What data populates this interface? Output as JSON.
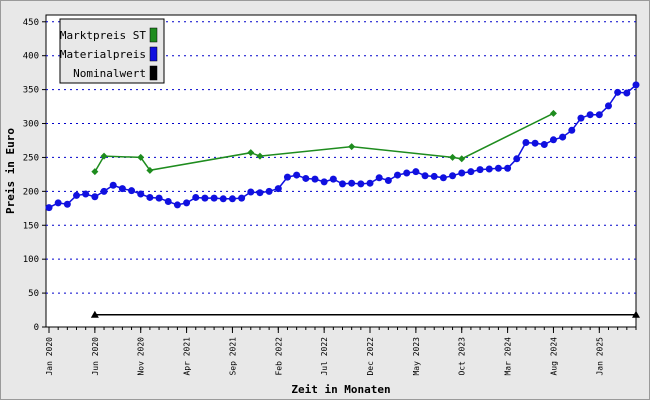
{
  "chart_data": {
    "type": "line",
    "xlabel": "Zeit in Monaten",
    "ylabel": "Preis in Euro",
    "ylim": [
      0,
      460
    ],
    "xlim": [
      "2020-01",
      "2025-05"
    ],
    "y_ticks": [
      0,
      50,
      100,
      150,
      200,
      250,
      300,
      350,
      400,
      450
    ],
    "x_tick_labels": [
      "Jan 2020",
      "Jun 2020",
      "Nov 2020",
      "Apr 2021",
      "Sep 2021",
      "Feb 2022",
      "Jul 2022",
      "Dec 2022",
      "May 2023",
      "Oct 2023",
      "Mar 2024",
      "Aug 2024",
      "Jan 2025"
    ],
    "x_tick_values": [
      "2020-01",
      "2020-06",
      "2020-11",
      "2021-04",
      "2021-09",
      "2022-02",
      "2022-07",
      "2022-12",
      "2023-05",
      "2023-10",
      "2024-03",
      "2024-08",
      "2025-01"
    ],
    "grid": true,
    "legend_position": "top-left",
    "series": [
      {
        "name": "Marktpreis ST",
        "color": "#1e8c1e",
        "marker": "diamond",
        "x": [
          "2020-06",
          "2020-07",
          "2020-11",
          "2020-12",
          "2021-11",
          "2021-12",
          "2022-10",
          "2023-09",
          "2023-10",
          "2024-08"
        ],
        "y": [
          229,
          252,
          250,
          231,
          257,
          252,
          266,
          250,
          248,
          315
        ]
      },
      {
        "name": "Materialpreis",
        "color": "#1010e0",
        "marker": "circle",
        "x": [
          "2020-01",
          "2020-02",
          "2020-03",
          "2020-04",
          "2020-05",
          "2020-06",
          "2020-07",
          "2020-08",
          "2020-09",
          "2020-10",
          "2020-11",
          "2020-12",
          "2021-01",
          "2021-02",
          "2021-03",
          "2021-04",
          "2021-05",
          "2021-06",
          "2021-07",
          "2021-08",
          "2021-09",
          "2021-10",
          "2021-11",
          "2021-12",
          "2022-01",
          "2022-02",
          "2022-03",
          "2022-04",
          "2022-05",
          "2022-06",
          "2022-07",
          "2022-08",
          "2022-09",
          "2022-10",
          "2022-11",
          "2022-12",
          "2023-01",
          "2023-02",
          "2023-03",
          "2023-04",
          "2023-05",
          "2023-06",
          "2023-07",
          "2023-08",
          "2023-09",
          "2023-10",
          "2023-11",
          "2023-12",
          "2024-01",
          "2024-02",
          "2024-03",
          "2024-04",
          "2024-05",
          "2024-06",
          "2024-07",
          "2024-08",
          "2024-09",
          "2024-10",
          "2024-11",
          "2024-12",
          "2025-01",
          "2025-02",
          "2025-03",
          "2025-04",
          "2025-05"
        ],
        "y": [
          176,
          183,
          181,
          194,
          196,
          192,
          200,
          209,
          204,
          201,
          196,
          191,
          190,
          185,
          180,
          183,
          191,
          190,
          190,
          189,
          189,
          190,
          199,
          198,
          200,
          204,
          221,
          224,
          219,
          218,
          214,
          218,
          211,
          212,
          211,
          212,
          220,
          216,
          224,
          227,
          229,
          223,
          222,
          220,
          223,
          227,
          229,
          232,
          233,
          234,
          234,
          248,
          272,
          271,
          269,
          276,
          280,
          290,
          308,
          313,
          313,
          326,
          346,
          345,
          357
        ]
      },
      {
        "name": "Nominalwert",
        "color": "#000000",
        "marker": "triangle",
        "x": [
          "2020-06",
          "2025-05"
        ],
        "y": [
          18,
          18
        ]
      }
    ]
  }
}
